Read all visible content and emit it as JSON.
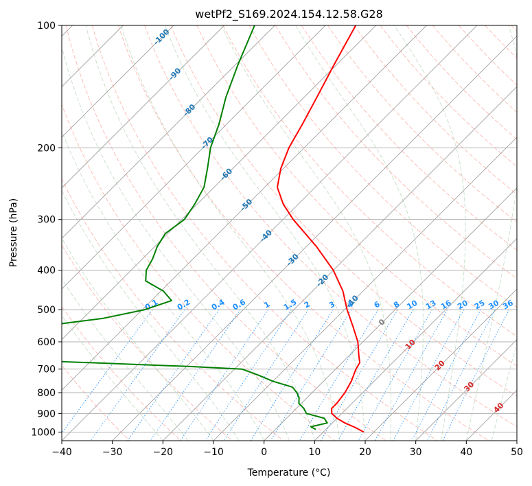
{
  "chart_data": {
    "type": "line",
    "subtype": "skew-t log-p",
    "title": "wetPf2_S169.2024.154.12.58.G28",
    "xlabel": "Temperature (°C)",
    "ylabel": "Pressure (hPa)",
    "xlim": [
      -40,
      50
    ],
    "ylim": [
      1050,
      100
    ],
    "y_scale": "log",
    "grid": true,
    "x_ticks": [
      -40,
      -30,
      -20,
      -10,
      0,
      10,
      20,
      30,
      40,
      50
    ],
    "x_tick_labels": [
      "−40",
      "−30",
      "−20",
      "−10",
      "0",
      "10",
      "20",
      "30",
      "40",
      "50"
    ],
    "y_ticks": [
      100,
      200,
      300,
      400,
      500,
      600,
      700,
      800,
      900,
      1000
    ],
    "y_tick_labels": [
      "100",
      "200",
      "300",
      "400",
      "500",
      "600",
      "700",
      "800",
      "900",
      "1000"
    ],
    "series": [
      {
        "role": "temperature",
        "color": "#ff0000",
        "points": [
          [
            1000,
            18.0
          ],
          [
            975,
            15.5
          ],
          [
            950,
            12.5
          ],
          [
            925,
            10.0
          ],
          [
            900,
            8.0
          ],
          [
            875,
            7.0
          ],
          [
            850,
            7.0
          ],
          [
            800,
            6.5
          ],
          [
            750,
            5.5
          ],
          [
            700,
            4.0
          ],
          [
            675,
            3.5
          ],
          [
            650,
            2.0
          ],
          [
            600,
            -1.0
          ],
          [
            550,
            -5.0
          ],
          [
            500,
            -9.5
          ],
          [
            450,
            -14.0
          ],
          [
            400,
            -20.0
          ],
          [
            350,
            -28.0
          ],
          [
            300,
            -38.0
          ],
          [
            275,
            -43.0
          ],
          [
            250,
            -47.5
          ],
          [
            225,
            -50.5
          ],
          [
            200,
            -53.0
          ],
          [
            175,
            -55.0
          ],
          [
            150,
            -57.5
          ],
          [
            125,
            -60.5
          ],
          [
            100,
            -64.0
          ]
        ]
      },
      {
        "role": "dewpoint",
        "color": "#008000",
        "points": [
          [
            985,
            8.0
          ],
          [
            970,
            6.5
          ],
          [
            950,
            9.0
          ],
          [
            925,
            7.5
          ],
          [
            900,
            3.0
          ],
          [
            875,
            1.5
          ],
          [
            850,
            -0.5
          ],
          [
            825,
            -1.5
          ],
          [
            800,
            -3.0
          ],
          [
            775,
            -5.0
          ],
          [
            750,
            -10.0
          ],
          [
            725,
            -14.0
          ],
          [
            700,
            -18.5
          ],
          [
            690,
            -29.0
          ],
          [
            675,
            -50.0
          ],
          [
            660,
            -72.0
          ],
          [
            550,
            -67.0
          ],
          [
            525,
            -56.0
          ],
          [
            500,
            -49.5
          ],
          [
            475,
            -46.0
          ],
          [
            450,
            -49.5
          ],
          [
            425,
            -55.0
          ],
          [
            400,
            -57.0
          ],
          [
            375,
            -58.0
          ],
          [
            350,
            -59.5
          ],
          [
            325,
            -60.5
          ],
          [
            300,
            -59.5
          ],
          [
            275,
            -60.5
          ],
          [
            250,
            -62.0
          ],
          [
            225,
            -65.0
          ],
          [
            200,
            -68.5
          ],
          [
            175,
            -71.5
          ],
          [
            150,
            -75.5
          ],
          [
            125,
            -79.5
          ],
          [
            100,
            -84.0
          ]
        ]
      }
    ],
    "dry_adiabat_color": "#fa8072",
    "moist_adiabat_color": "#8fbc8f",
    "mixing_ratio_color": "#1e90ff",
    "isotherm_color": "#808080",
    "isotherm_labels": [
      {
        "text": "-100",
        "color": "#1f77b4",
        "p": 107,
        "t": -100
      },
      {
        "text": "-90",
        "color": "#1f77b4",
        "p": 132,
        "t": -90
      },
      {
        "text": "-80",
        "color": "#1f77b4",
        "p": 162,
        "t": -80
      },
      {
        "text": "-70",
        "color": "#1f77b4",
        "p": 195,
        "t": -70
      },
      {
        "text": "-60",
        "color": "#1f77b4",
        "p": 233,
        "t": -60
      },
      {
        "text": "-50",
        "color": "#1f77b4",
        "p": 277,
        "t": -50
      },
      {
        "text": "-40",
        "color": "#1f77b4",
        "p": 330,
        "t": -40
      },
      {
        "text": "-30",
        "color": "#1f77b4",
        "p": 378,
        "t": -30
      },
      {
        "text": "-20",
        "color": "#1f77b4",
        "p": 425,
        "t": -20
      },
      {
        "text": "-10",
        "color": "#1f77b4",
        "p": 478,
        "t": -10
      },
      {
        "text": "0",
        "color": "#808080",
        "p": 538,
        "t": 0
      },
      {
        "text": "10",
        "color": "#d62728",
        "p": 610,
        "t": 10
      },
      {
        "text": "20",
        "color": "#d62728",
        "p": 687,
        "t": 20
      },
      {
        "text": "30",
        "color": "#d62728",
        "p": 775,
        "t": 30
      },
      {
        "text": "40",
        "color": "#d62728",
        "p": 873,
        "t": 40
      }
    ],
    "mixing_ratio_labels": [
      "0.1",
      "0.2",
      "0.4",
      "0.6",
      "1",
      "1.5",
      "2",
      "3",
      "4",
      "6",
      "8",
      "10",
      "13",
      "16",
      "20",
      "25",
      "30",
      "36"
    ]
  }
}
